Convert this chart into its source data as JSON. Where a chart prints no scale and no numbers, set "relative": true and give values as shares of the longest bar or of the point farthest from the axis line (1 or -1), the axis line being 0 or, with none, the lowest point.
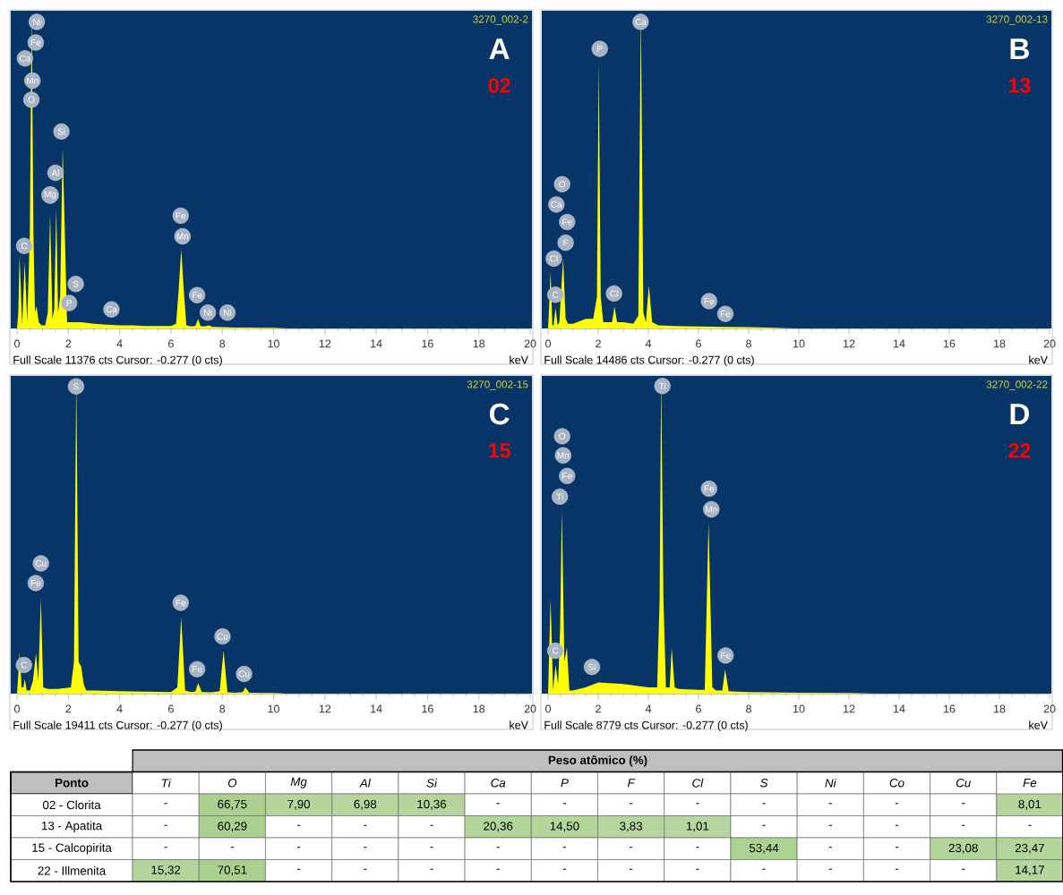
{
  "chart_data": [
    {
      "type": "area",
      "title": "A",
      "subtitle": "02",
      "xlabel": "keV",
      "relative": true,
      "color": "#ffff00",
      "xlim": [
        0,
        20
      ],
      "xticks": [
        0,
        2,
        4,
        6,
        8,
        10,
        12,
        14,
        16,
        18,
        20
      ],
      "x": [
        0,
        0.05,
        0.1,
        0.2,
        0.3,
        0.4,
        0.5,
        0.57,
        0.64,
        0.7,
        0.76,
        0.85,
        0.95,
        1.1,
        1.2,
        1.29,
        1.38,
        1.45,
        1.53,
        1.6,
        1.68,
        1.78,
        1.86,
        1.95,
        2.1,
        2.5,
        3,
        3.5,
        4,
        4.5,
        5,
        5.5,
        6,
        6.2,
        6.3,
        6.4,
        6.5,
        6.6,
        6.8,
        6.95,
        7.06,
        7.15,
        7.3,
        7.48,
        7.6,
        8,
        8.5,
        9,
        9.5,
        10,
        10.5
      ],
      "values": [
        0,
        0.05,
        0.23,
        0.01,
        0.21,
        0.02,
        0.3,
        1,
        0.3,
        0.05,
        0.07,
        0.02,
        0.01,
        0.01,
        0.05,
        0.36,
        0.03,
        0.06,
        0.38,
        0.05,
        0.1,
        0.57,
        null,
        0.02,
        0.02,
        0.02,
        0.015,
        0.012,
        0.01,
        0.01,
        0.008,
        0.008,
        0.008,
        0.015,
        0.12,
        0.25,
        0.12,
        0.01,
        0.006,
        0.008,
        0.03,
        0.008,
        0.006,
        0.01,
        0.005,
        0.004,
        0.003,
        0.003,
        0.002,
        0.002,
        0
      ],
      "annotations": [
        "3270_002-2",
        "Full Scale 11376 cts Cursor: -0.277 (0 cts)",
        {
          "text": "Ni",
          "x": 0.77,
          "y": 0.965
        },
        {
          "text": "Fe",
          "x": 0.73,
          "y": 0.9
        },
        {
          "text": "Ca",
          "x": 0.31,
          "y": 0.85
        },
        {
          "text": "Mn",
          "x": 0.6,
          "y": 0.78
        },
        {
          "text": "O",
          "x": 0.56,
          "y": 0.72
        },
        {
          "text": "Si",
          "x": 1.73,
          "y": 0.62
        },
        {
          "text": "Al",
          "x": 1.5,
          "y": 0.49
        },
        {
          "text": "Mg",
          "x": 1.29,
          "y": 0.42
        },
        {
          "text": "C",
          "x": 0.28,
          "y": 0.26
        },
        {
          "text": "S",
          "x": 2.29,
          "y": 0.14
        },
        {
          "text": "P",
          "x": 2.03,
          "y": 0.08
        },
        {
          "text": "Ca",
          "x": 3.68,
          "y": 0.06
        },
        {
          "text": "Fe",
          "x": 6.38,
          "y": 0.355
        },
        {
          "text": "Mn",
          "x": 6.45,
          "y": 0.29
        },
        {
          "text": "Fe",
          "x": 7.02,
          "y": 0.105
        },
        {
          "text": "Ni",
          "x": 7.44,
          "y": 0.05
        },
        {
          "text": "Ni",
          "x": 8.2,
          "y": 0.05
        }
      ]
    },
    {
      "type": "area",
      "title": "B",
      "subtitle": "13",
      "xlabel": "keV",
      "relative": true,
      "color": "#ffff00",
      "xlim": [
        0,
        20
      ],
      "xticks": [
        0,
        2,
        4,
        6,
        8,
        10,
        12,
        14,
        16,
        18,
        20
      ],
      "x": [
        0,
        0.05,
        0.1,
        0.17,
        0.22,
        0.3,
        0.38,
        0.45,
        0.6,
        0.7,
        0.8,
        1,
        1.5,
        1.8,
        1.95,
        2.02,
        2.1,
        2.2,
        2.4,
        2.55,
        2.65,
        2.75,
        3,
        3.4,
        3.6,
        3.7,
        3.8,
        3.9,
        4.02,
        4.15,
        4.4,
        5,
        6,
        7,
        8,
        9,
        9.7
      ],
      "values": [
        0,
        0.08,
        0.18,
        0.01,
        0.01,
        0.065,
        0.01,
        0.02,
        0.22,
        0.03,
        0.015,
        0.015,
        0.03,
        0.03,
        0.1,
        0.84,
        0.1,
        0.02,
        0.02,
        0.02,
        0.07,
        0.02,
        0.02,
        0.015,
        0.04,
        1,
        0.05,
        0.02,
        0.135,
        0.02,
        0.01,
        0.008,
        0.006,
        0.005,
        0.004,
        0.002,
        0
      ],
      "annotations": [
        "3270_002-13",
        "Full Scale 14486 cts Cursor: -0.277 (0 cts)",
        {
          "text": "Ca",
          "x": 3.69,
          "y": 0.965
        },
        {
          "text": "P",
          "x": 2.06,
          "y": 0.88
        },
        {
          "text": "O",
          "x": 0.56,
          "y": 0.454
        },
        {
          "text": "Ca",
          "x": 0.33,
          "y": 0.39
        },
        {
          "text": "Fe",
          "x": 0.76,
          "y": 0.335
        },
        {
          "text": "F",
          "x": 0.7,
          "y": 0.27
        },
        {
          "text": "Cl",
          "x": 0.23,
          "y": 0.22
        },
        {
          "text": "C",
          "x": 0.29,
          "y": 0.106
        },
        {
          "text": "Cl",
          "x": 2.63,
          "y": 0.11
        },
        {
          "text": "Fe",
          "x": 6.42,
          "y": 0.086
        },
        {
          "text": "Fe",
          "x": 7.07,
          "y": 0.046
        }
      ]
    },
    {
      "type": "area",
      "title": "C",
      "subtitle": "15",
      "xlabel": "keV",
      "relative": true,
      "color": "#ffff00",
      "xlim": [
        0,
        20
      ],
      "xticks": [
        0,
        2,
        4,
        6,
        8,
        10,
        12,
        14,
        16,
        18,
        20
      ],
      "x": [
        0,
        0.05,
        0.1,
        0.18,
        0.25,
        0.3,
        0.38,
        0.5,
        0.62,
        0.74,
        0.83,
        0.93,
        1.02,
        1.2,
        1.6,
        2.1,
        2.22,
        2.31,
        2.4,
        2.5,
        2.6,
        2.7,
        3,
        4,
        5,
        6,
        6.25,
        6.4,
        6.55,
        6.8,
        6.95,
        7.06,
        7.2,
        7.6,
        7.9,
        8.05,
        8.2,
        8.5,
        8.8,
        8.9,
        9.05,
        9.5,
        10,
        10.5
      ],
      "values": [
        0,
        0.06,
        0.13,
        0.02,
        0.02,
        0.046,
        0.01,
        0.01,
        0.04,
        0.127,
        0.04,
        0.3,
        0.02,
        0.015,
        0.015,
        0.02,
        0.1,
        1,
        0.1,
        0.085,
        0.03,
        0.01,
        0.01,
        0.008,
        0.006,
        0.005,
        0.02,
        0.24,
        0.01,
        0.005,
        0.006,
        0.033,
        0.005,
        0.004,
        0.008,
        0.136,
        0.004,
        0.003,
        0.005,
        0.02,
        0.003,
        0.002,
        0.002,
        0
      ],
      "annotations": [
        "3270_002-15",
        "Full Scale 19411 cts Cursor: -0.277 (0 cts)",
        {
          "text": "S",
          "x": 2.3,
          "y": 0.967
        },
        {
          "text": "Cu",
          "x": 0.93,
          "y": 0.41
        },
        {
          "text": "Fe",
          "x": 0.73,
          "y": 0.348
        },
        {
          "text": "Fe",
          "x": 6.38,
          "y": 0.286
        },
        {
          "text": "Cu",
          "x": 8.01,
          "y": 0.18
        },
        {
          "text": "Fe",
          "x": 7.02,
          "y": 0.077
        },
        {
          "text": "Cu",
          "x": 8.85,
          "y": 0.062
        },
        {
          "text": "C",
          "x": 0.27,
          "y": 0.09
        }
      ]
    },
    {
      "type": "area",
      "title": "D",
      "subtitle": "22",
      "xlabel": "keV",
      "relative": true,
      "color": "#ffff00",
      "xlim": [
        0,
        20
      ],
      "xticks": [
        0,
        2,
        4,
        6,
        8,
        10,
        12,
        14,
        16,
        18,
        20
      ],
      "x": [
        0,
        0.05,
        0.1,
        0.2,
        0.3,
        0.4,
        0.48,
        0.55,
        0.65,
        0.75,
        0.85,
        1,
        1.5,
        2,
        3,
        4,
        4.35,
        4.45,
        4.51,
        4.6,
        4.7,
        4.85,
        4.93,
        5.05,
        5.2,
        6,
        6.25,
        6.4,
        6.55,
        6.7,
        6.95,
        7.06,
        7.2,
        7.5,
        8,
        10,
        12,
        13
      ],
      "values": [
        0,
        null,
        0.3,
        0.01,
        0.09,
        0.03,
        0.2,
        0.58,
        0.1,
        0.146,
        0.01,
        0.01,
        0.02,
        0.035,
        0.03,
        0.02,
        0.02,
        0.3,
        1,
        0.3,
        0.02,
        0.02,
        0.144,
        0.02,
        0.015,
        0.012,
        0.012,
        0.54,
        0.02,
        0.01,
        0.01,
        0.076,
        0.008,
        0.006,
        0.005,
        0.003,
        0.002,
        0
      ],
      "annotations": [
        "3270_002-22",
        "Full Scale 8779 cts Cursor: -0.277 (0 cts)",
        {
          "text": "Ti",
          "x": 4.56,
          "y": 0.968
        },
        {
          "text": "O",
          "x": 0.56,
          "y": 0.81
        },
        {
          "text": "Mn",
          "x": 0.6,
          "y": 0.75
        },
        {
          "text": "Fe",
          "x": 0.76,
          "y": 0.685
        },
        {
          "text": "Ti",
          "x": 0.47,
          "y": 0.62
        },
        {
          "text": "Fe",
          "x": 6.42,
          "y": 0.645
        },
        {
          "text": "Mn",
          "x": 6.51,
          "y": 0.58
        },
        {
          "text": "Fe",
          "x": 7.08,
          "y": 0.12
        },
        {
          "text": "C",
          "x": 0.29,
          "y": 0.135
        },
        {
          "text": "Si",
          "x": 1.75,
          "y": 0.084
        }
      ]
    },
    {
      "type": "heatmap",
      "title": "Peso atômico (%)",
      "ylabel": "Ponto",
      "color": "#a9d08e",
      "categories": [
        "Ti",
        "O",
        "Mg",
        "Al",
        "Si",
        "Ca",
        "P",
        "F",
        "Cl",
        "S",
        "Ni",
        "Co",
        "Cu",
        "Fe"
      ],
      "y_categories": [
        "02 - Clorita",
        "13 - Apatita",
        "15 - Calcopirita",
        "22 - Illmenita"
      ],
      "cells": [
        [
          null,
          66.75,
          7.9,
          6.98,
          10.36,
          null,
          null,
          null,
          null,
          null,
          null,
          null,
          null,
          8.01
        ],
        [
          null,
          60.29,
          null,
          null,
          null,
          20.36,
          14.5,
          3.83,
          1.01,
          null,
          null,
          null,
          null,
          null
        ],
        [
          null,
          null,
          null,
          null,
          null,
          null,
          null,
          null,
          null,
          53.44,
          null,
          null,
          23.08,
          23.47
        ],
        [
          15.32,
          70.51,
          null,
          null,
          null,
          null,
          null,
          null,
          null,
          null,
          null,
          null,
          null,
          14.17
        ]
      ],
      "cell_labels": [
        [
          "-",
          "66,75",
          "7,90",
          "6,98",
          "10,36",
          "-",
          "-",
          "-",
          "-",
          "-",
          "-",
          "-",
          "-",
          "8,01"
        ],
        [
          "-",
          "60,29",
          "-",
          "-",
          "-",
          "20,36",
          "14,50",
          "3,83",
          "1,01",
          "-",
          "-",
          "-",
          "-",
          "-"
        ],
        [
          "-",
          "-",
          "-",
          "-",
          "-",
          "-",
          "-",
          "-",
          "-",
          "53,44",
          "-",
          "-",
          "23,08",
          "23,47"
        ],
        [
          "15,32",
          "70,51",
          "-",
          "-",
          "-",
          "-",
          "-",
          "-",
          "-",
          "-",
          "-",
          "-",
          "-",
          "14,17"
        ]
      ]
    }
  ]
}
